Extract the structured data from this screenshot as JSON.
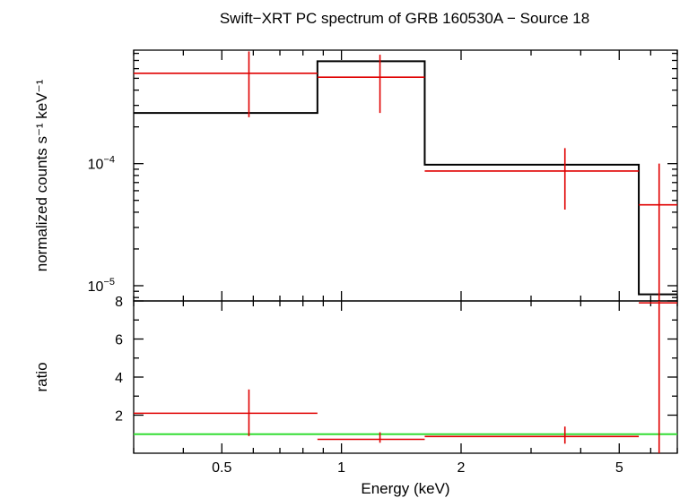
{
  "chart_data": [
    {
      "type": "step",
      "title": "Swift−XRT PC spectrum of GRB 160530A − Source 18",
      "ylabel": "normalized counts s⁻¹ keV⁻¹",
      "xscale": "log",
      "yscale": "log",
      "xlim": [
        0.3,
        7.0
      ],
      "ylim": [
        7.5e-06,
        0.00085
      ],
      "yticks": [
        {
          "value": 0.0001,
          "base": "10",
          "exp": "−4"
        },
        {
          "value": 1e-05,
          "base": "10",
          "exp": "−5"
        }
      ],
      "data_points": [
        {
          "x": 0.585,
          "xlo": 0.3,
          "xhi": 0.87,
          "y": 0.00055,
          "ylo": 0.00024,
          "yhi": 0.00083
        },
        {
          "x": 1.25,
          "xlo": 0.87,
          "xhi": 1.62,
          "y": 0.00051,
          "ylo": 0.00026,
          "yhi": 0.00078
        },
        {
          "x": 3.65,
          "xlo": 1.62,
          "xhi": 5.6,
          "y": 8.7e-05,
          "ylo": 4.2e-05,
          "yhi": 0.000134
        },
        {
          "x": 6.3,
          "xlo": 5.6,
          "xhi": 7.0,
          "y": 4.6e-05,
          "ylo": 7.5e-06,
          "yhi": 0.0001
        }
      ],
      "model": [
        {
          "xlo": 0.3,
          "xhi": 0.87,
          "y": 0.00026
        },
        {
          "xlo": 0.87,
          "xhi": 1.62,
          "y": 0.00069
        },
        {
          "xlo": 1.62,
          "xhi": 5.6,
          "y": 9.8e-05
        },
        {
          "xlo": 5.6,
          "xhi": 7.0,
          "y": 8.5e-06
        }
      ]
    },
    {
      "type": "scatter",
      "xlabel": "Energy (keV)",
      "ylabel": "ratio",
      "xscale": "log",
      "yscale": "linear",
      "xlim": [
        0.3,
        7.0
      ],
      "ylim": [
        0,
        8
      ],
      "xticks": [
        {
          "value": 0.5,
          "label": "0.5"
        },
        {
          "value": 1,
          "label": "1"
        },
        {
          "value": 2,
          "label": "2"
        },
        {
          "value": 5,
          "label": "5"
        }
      ],
      "yticks": [
        {
          "value": 2,
          "label": "2"
        },
        {
          "value": 4,
          "label": "4"
        },
        {
          "value": 6,
          "label": "6"
        },
        {
          "value": 8,
          "label": "8"
        }
      ],
      "reference_line": 1,
      "data_points": [
        {
          "x": 0.585,
          "xlo": 0.3,
          "xhi": 0.87,
          "y": 2.1,
          "ylo": 0.9,
          "yhi": 3.35
        },
        {
          "x": 1.25,
          "xlo": 0.87,
          "xhi": 1.62,
          "y": 0.73,
          "ylo": 0.55,
          "yhi": 1.1
        },
        {
          "x": 3.65,
          "xlo": 1.62,
          "xhi": 5.6,
          "y": 0.88,
          "ylo": 0.5,
          "yhi": 1.4
        },
        {
          "x": 6.3,
          "xlo": 5.6,
          "xhi": 7.0,
          "y": 7.9,
          "ylo": 0,
          "yhi": 8.0
        }
      ]
    }
  ],
  "colors": {
    "data": "#e00000",
    "model": "#000000",
    "reference": "#33dd33",
    "axes": "#000000"
  }
}
